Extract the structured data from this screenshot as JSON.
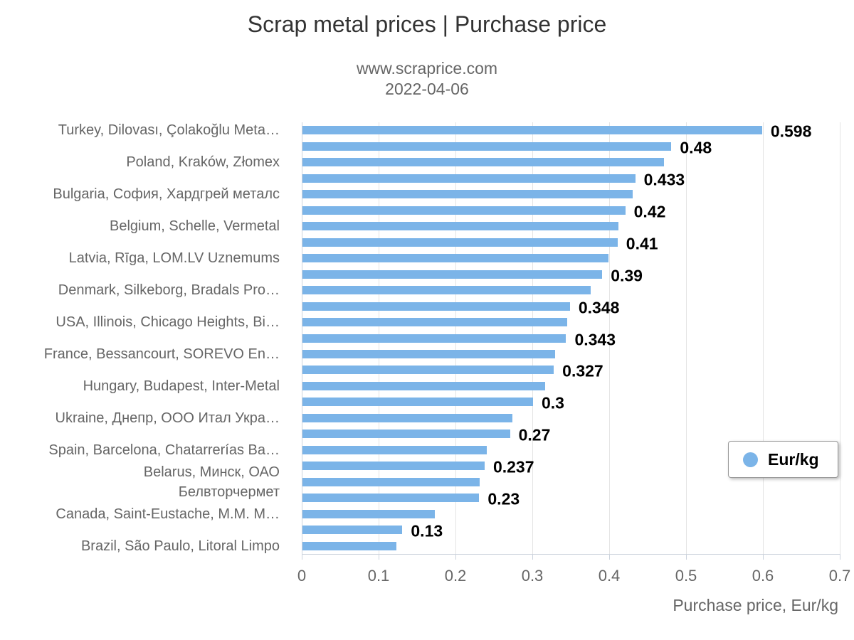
{
  "chart_data": {
    "type": "bar",
    "orientation": "horizontal",
    "title": "Scrap metal prices | Purchase price",
    "subtitle": [
      "www.scraprice.com",
      "2022-04-06"
    ],
    "xlabel": "Purchase price, Eur/kg",
    "xlim": [
      0,
      0.7
    ],
    "x_ticks": [
      "0",
      "0.1",
      "0.2",
      "0.3",
      "0.4",
      "0.5",
      "0.6",
      "0.7"
    ],
    "grid": true,
    "bar_color": "#7bb4e8",
    "legend": {
      "label": "Eur/kg",
      "position": "right-bottom"
    },
    "rows": [
      {
        "category": "Turkey, Dilovası, Çolakoğlu Meta…",
        "value": 0.598,
        "data_label": "0.598"
      },
      {
        "category": "",
        "value": 0.48,
        "data_label": "0.48"
      },
      {
        "category": "Poland, Kraków, Złomex",
        "value": 0.47,
        "data_label": ""
      },
      {
        "category": "",
        "value": 0.433,
        "data_label": "0.433"
      },
      {
        "category": "Bulgaria, София, Хардгрей металс",
        "value": 0.43,
        "data_label": ""
      },
      {
        "category": "",
        "value": 0.42,
        "data_label": "0.42"
      },
      {
        "category": "Belgium, Schelle, Vermetal",
        "value": 0.411,
        "data_label": ""
      },
      {
        "category": "",
        "value": 0.41,
        "data_label": "0.41"
      },
      {
        "category": "Latvia, Rīga, LOM.LV Uznemums",
        "value": 0.398,
        "data_label": ""
      },
      {
        "category": "",
        "value": 0.39,
        "data_label": "0.39"
      },
      {
        "category": "Denmark, Silkeborg, Bradals Pro…",
        "value": 0.375,
        "data_label": ""
      },
      {
        "category": "",
        "value": 0.348,
        "data_label": "0.348"
      },
      {
        "category": "USA, Illinois, Chicago Heights, Bi…",
        "value": 0.344,
        "data_label": ""
      },
      {
        "category": "",
        "value": 0.343,
        "data_label": "0.343"
      },
      {
        "category": "France, Bessancourt, SOREVO En…",
        "value": 0.329,
        "data_label": ""
      },
      {
        "category": "",
        "value": 0.327,
        "data_label": "0.327"
      },
      {
        "category": "Hungary, Budapest, Inter-Metal",
        "value": 0.316,
        "data_label": ""
      },
      {
        "category": "",
        "value": 0.3,
        "data_label": "0.3"
      },
      {
        "category": "Ukraine, Днепр, ООО Итал Укра…",
        "value": 0.273,
        "data_label": ""
      },
      {
        "category": "",
        "value": 0.27,
        "data_label": "0.27"
      },
      {
        "category": "Spain, Barcelona, Chatarrerías Ba…",
        "value": 0.24,
        "data_label": ""
      },
      {
        "category": "",
        "value": 0.237,
        "data_label": "0.237"
      },
      {
        "category": "Belarus, Минск, ОАО\nБелвторчермет",
        "value": 0.231,
        "data_label": ""
      },
      {
        "category": "",
        "value": 0.23,
        "data_label": "0.23"
      },
      {
        "category": "Canada, Saint-Eustache, M.M. M…",
        "value": 0.172,
        "data_label": ""
      },
      {
        "category": "",
        "value": 0.13,
        "data_label": "0.13"
      },
      {
        "category": "Brazil, São Paulo, Litoral Limpo",
        "value": 0.122,
        "data_label": ""
      }
    ]
  }
}
